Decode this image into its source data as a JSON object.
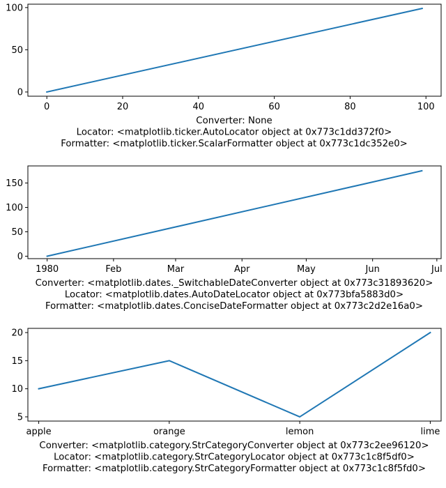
{
  "chart_data": [
    {
      "type": "line",
      "series": [
        {
          "x": [
            0,
            99
          ],
          "values": [
            0,
            99
          ],
          "color": "#1f77b4"
        }
      ],
      "xlim": [
        -5,
        104
      ],
      "ylim": [
        -5,
        104
      ],
      "xticks": [
        0,
        20,
        40,
        60,
        80,
        100
      ],
      "xtick_labels": [
        "0",
        "20",
        "40",
        "60",
        "80",
        "100"
      ],
      "yticks": [
        0,
        50,
        100
      ],
      "ytick_labels": [
        "0",
        "50",
        "100"
      ],
      "xlabel_lines": [
        "Converter: None",
        "Locator: <matplotlib.ticker.AutoLocator object at 0x773c1dd372f0>",
        "Formatter: <matplotlib.ticker.ScalarFormatter object at 0x773c1dc352e0>"
      ],
      "grid": false
    },
    {
      "type": "line",
      "series": [
        {
          "x": [
            "1980-01-01",
            "1980-06-24"
          ],
          "values": [
            0,
            175
          ],
          "color": "#1f77b4"
        }
      ],
      "xlim": [
        "1979-12-23",
        "1980-07-03"
      ],
      "ylim": [
        -5,
        185
      ],
      "xticks": [
        "1980-01-01",
        "1980-02-01",
        "1980-03-01",
        "1980-04-01",
        "1980-05-01",
        "1980-06-01",
        "1980-07-01"
      ],
      "xtick_labels": [
        "1980",
        "Feb",
        "Mar",
        "Apr",
        "May",
        "Jun",
        "Jul"
      ],
      "yticks": [
        0,
        50,
        100,
        150
      ],
      "ytick_labels": [
        "0",
        "50",
        "100",
        "150"
      ],
      "xlabel_lines": [
        "Converter: <matplotlib.dates._SwitchableDateConverter object at 0x773c31893620>",
        "Locator: <matplotlib.dates.AutoDateLocator object at 0x773bfa5883d0>",
        "Formatter: <matplotlib.dates.ConciseDateFormatter object at 0x773c2d2e16a0>"
      ],
      "grid": false
    },
    {
      "type": "line",
      "categories": [
        "apple",
        "orange",
        "lemon",
        "lime"
      ],
      "series": [
        {
          "values": [
            10,
            15,
            5,
            20
          ],
          "color": "#1f77b4"
        }
      ],
      "ylim": [
        4.25,
        20.75
      ],
      "yticks": [
        5,
        10,
        15,
        20
      ],
      "ytick_labels": [
        "5",
        "10",
        "15",
        "20"
      ],
      "xlabel_lines": [
        "Converter: <matplotlib.category.StrCategoryConverter object at 0x773c2ee96120>",
        "Locator: <matplotlib.category.StrCategoryLocator object at 0x773c1c8f5df0>",
        "Formatter: <matplotlib.category.StrCategoryFormatter object at 0x773c1c8f5fd0>"
      ],
      "grid": false
    }
  ]
}
